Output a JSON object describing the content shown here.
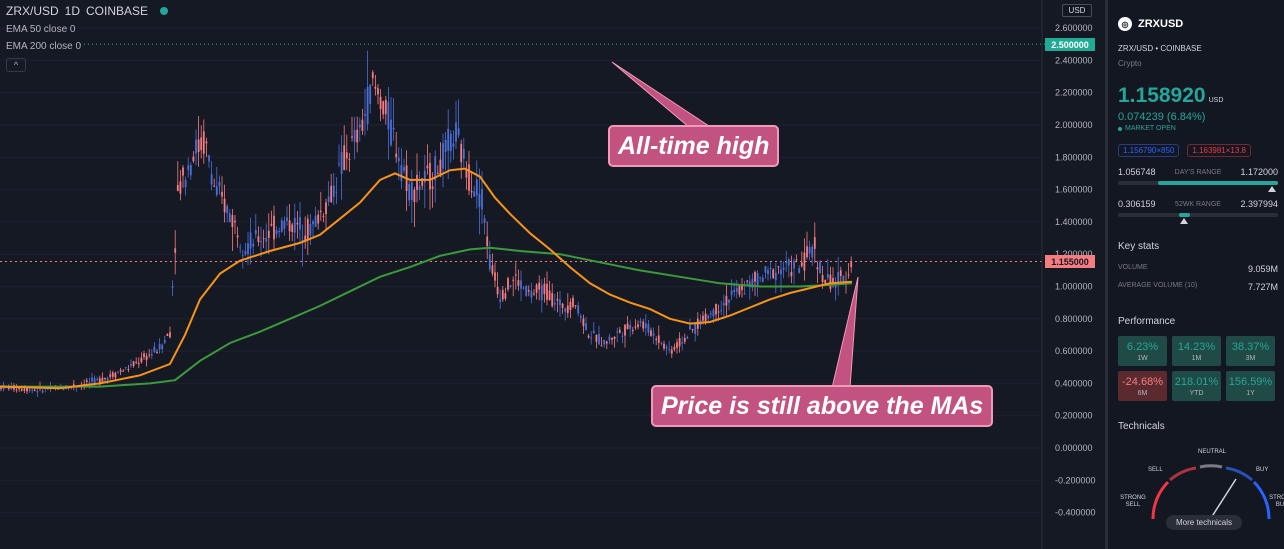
{
  "legend": {
    "symbol": "ZRX/USD",
    "interval": "1D",
    "exchange": "COINBASE",
    "ema50": "EMA 50 close 0",
    "ema200": "EMA 200 close 0",
    "collapse_glyph": "^"
  },
  "currency_selector": "USD",
  "price_axis": {
    "ticks": [
      "2.600000",
      "2.400000",
      "2.200000",
      "2.000000",
      "1.800000",
      "1.600000",
      "1.400000",
      "1.200000",
      "1.000000",
      "0.800000",
      "0.600000",
      "0.400000",
      "0.200000",
      "0.000000",
      "-0.200000",
      "-0.400000"
    ],
    "ath_tag": "2.500000",
    "current_tag": "1.155000"
  },
  "annotations": {
    "ath": "All-time high",
    "ma": "Price is still above the MAs"
  },
  "colors": {
    "background": "#151924",
    "up": "#4a6fd8",
    "down": "#f77c80",
    "ema50": "#f7931a",
    "ema200": "#3c9a3c",
    "annotation": "#c2527f",
    "accent_green": "#26a69a"
  },
  "sidebar": {
    "logo_icon": "zrx-logo-icon",
    "title": "ZRXUSD",
    "pair_exchange": "ZRX/USD  •  COINBASE",
    "type": "Crypto",
    "price": "1.158920",
    "price_currency": "USD",
    "change": "0.074239 (6.84%)",
    "market_status": "MARKET OPEN",
    "bid": "1.156790×850",
    "ask": "1.163981×13.8",
    "days_range": {
      "low": "1.056748",
      "label": "DAY'S RANGE",
      "high": "1.172000"
    },
    "wk52_range": {
      "low": "0.306159",
      "label": "52WK RANGE",
      "high": "2.397994"
    },
    "key_stats_title": "Key stats",
    "volume_label": "VOLUME",
    "volume": "9.059M",
    "avg_volume_label": "AVERAGE VOLUME (10)",
    "avg_volume": "7.727M",
    "performance_title": "Performance",
    "performance": [
      {
        "value": "6.23%",
        "period": "1W",
        "sign": "pos"
      },
      {
        "value": "14.23%",
        "period": "1M",
        "sign": "pos"
      },
      {
        "value": "38.37%",
        "period": "3M",
        "sign": "pos"
      },
      {
        "value": "-24.68%",
        "period": "6M",
        "sign": "neg"
      },
      {
        "value": "218.01%",
        "period": "YTD",
        "sign": "pos"
      },
      {
        "value": "156.59%",
        "period": "1Y",
        "sign": "pos"
      }
    ],
    "technicals_title": "Technicals",
    "gauge": {
      "neutral": "NEUTRAL",
      "sell": "SELL",
      "buy": "BUY",
      "strong_sell": "STRONG SELL",
      "strong_buy": "STRONG BUY"
    },
    "more_technicals": "More technicals"
  }
}
